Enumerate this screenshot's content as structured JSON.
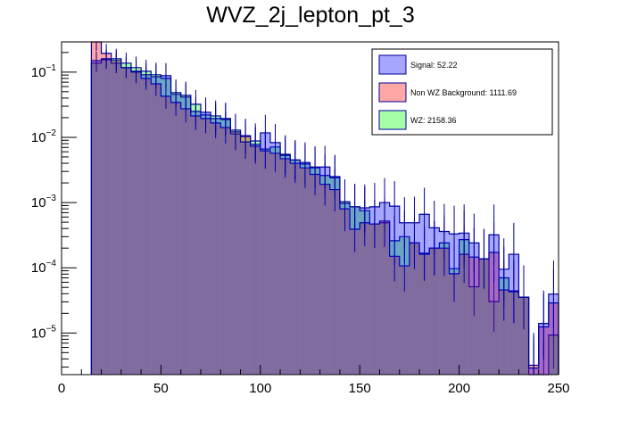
{
  "chart_data": {
    "type": "bar",
    "title": "WVZ_2j_lepton_pt_3",
    "xlabel": "",
    "ylabel": "",
    "xlim": [
      0,
      250
    ],
    "ylim": [
      2.3e-06,
      0.29
    ],
    "yscale": "log",
    "grid": false,
    "x_ticks": [
      "0",
      "50",
      "100",
      "150",
      "200",
      "250"
    ],
    "x_tick_values": [
      0,
      50,
      100,
      150,
      200,
      250
    ],
    "y_ticks": [
      {
        "base": "10",
        "exp": "−1",
        "value": 0.1
      },
      {
        "base": "10",
        "exp": "−2",
        "value": 0.01
      },
      {
        "base": "10",
        "exp": "−3",
        "value": 0.001
      },
      {
        "base": "10",
        "exp": "−4",
        "value": 0.0001
      },
      {
        "base": "10",
        "exp": "−5",
        "value": 1e-05
      }
    ],
    "bin_start": 15,
    "bin_width": 5,
    "legend_position": "top-right",
    "series": [
      {
        "name": "WZ",
        "label": "WZ: 2158.36",
        "fill": "#00ff00",
        "fill_opacity": 0.35,
        "line": "#000099",
        "values": [
          0.137,
          0.155,
          0.16,
          0.137,
          0.117,
          0.103,
          0.091,
          0.08,
          0.0484,
          0.044,
          0.0321,
          0.022,
          0.0213,
          0.0194,
          0.0129,
          0.0106,
          0.0088,
          0.0066,
          0.0071,
          0.0055,
          0.0045,
          0.0039,
          0.0034,
          0.0026,
          0.0024,
          0.00103,
          0.00086,
          0.00075,
          0.00047,
          0.00049,
          0.00026,
          0.0003,
          0.00024,
          0.000167,
          0.0002,
          0.00024,
          9.7e-05,
          0.00027,
          5.1e-05,
          0.000137,
          3.03e-05,
          7e-05,
          4.43e-05,
          3.53e-05,
          1.2e-06,
          1.2e-06,
          9.3e-06
        ]
      },
      {
        "name": "Non WZ Background",
        "label": "Non WZ Background: 1111.69",
        "fill": "#ff0000",
        "fill_opacity": 0.35,
        "line": "#000099",
        "values": [
          0.29,
          0.194,
          0.15,
          0.117,
          0.103,
          0.08,
          0.066,
          0.0427,
          0.0342,
          0.0274,
          0.0213,
          0.0194,
          0.0166,
          0.0141,
          0.0121,
          0.0103,
          0.0073,
          0.0062,
          0.0057,
          0.0047,
          0.004,
          0.0034,
          0.0027,
          0.0019,
          0.00158,
          0.0008,
          0.00039,
          0.00049,
          0.00047,
          0.00052,
          0.00015,
          0.000107,
          0.00024,
          0.000161,
          0.0002,
          0.0002,
          8.1e-05,
          0.000161,
          0.000146,
          0.000137,
          0.000172,
          4.57e-05,
          4.28e-05,
          3.53e-05,
          3.2e-06,
          1.24e-05,
          2.89e-05
        ]
      },
      {
        "name": "Signal",
        "label": "Signal: 52.22",
        "fill": "#0000ff",
        "fill_opacity": 0.35,
        "line": "#000099",
        "values": [
          0.15,
          0.16,
          0.137,
          0.117,
          0.1,
          0.091,
          0.085,
          0.088,
          0.0455,
          0.0414,
          0.025,
          0.0242,
          0.0194,
          0.0188,
          0.0113,
          0.0085,
          0.0078,
          0.0117,
          0.0083,
          0.0053,
          0.0045,
          0.0041,
          0.0035,
          0.0035,
          0.0025,
          0.00097,
          0.00086,
          0.00083,
          0.00086,
          0.001,
          0.00088,
          0.00049,
          0.00049,
          0.00066,
          0.00041,
          0.00036,
          0.00033,
          0.00034,
          0.00024,
          0.000137,
          0.00032,
          9.5e-05,
          0.000161,
          3.53e-05,
          2.9e-06,
          1.4e-05,
          3.95e-05
        ]
      }
    ],
    "legend_order": [
      "Signal",
      "Non WZ Background",
      "WZ"
    ]
  }
}
